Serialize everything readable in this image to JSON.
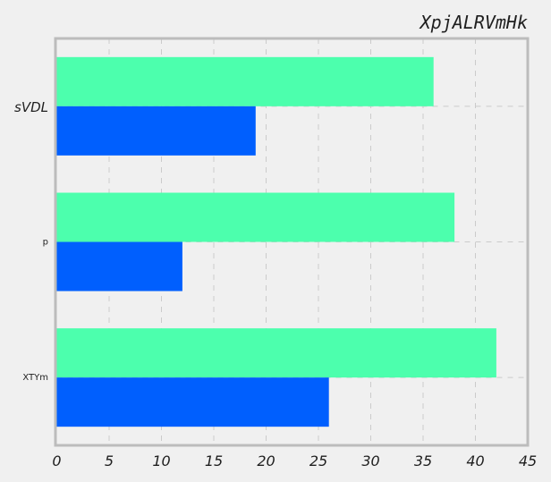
{
  "chart_data": {
    "type": "bar",
    "orientation": "horizontal",
    "title": "XpjALRVmHk",
    "xlabel": "",
    "ylabel": "",
    "xlim": [
      0,
      45
    ],
    "x_ticks": [
      "0",
      "5",
      "10",
      "15",
      "20",
      "25",
      "30",
      "35",
      "40",
      "45"
    ],
    "categories": [
      "sVDL",
      "p",
      "XTYm"
    ],
    "series": [
      {
        "values": [
          36,
          38,
          42
        ],
        "color": "#4cffad"
      },
      {
        "values": [
          19,
          12,
          26
        ],
        "color": "#005ffe"
      }
    ],
    "grid": true,
    "legend": "none"
  }
}
